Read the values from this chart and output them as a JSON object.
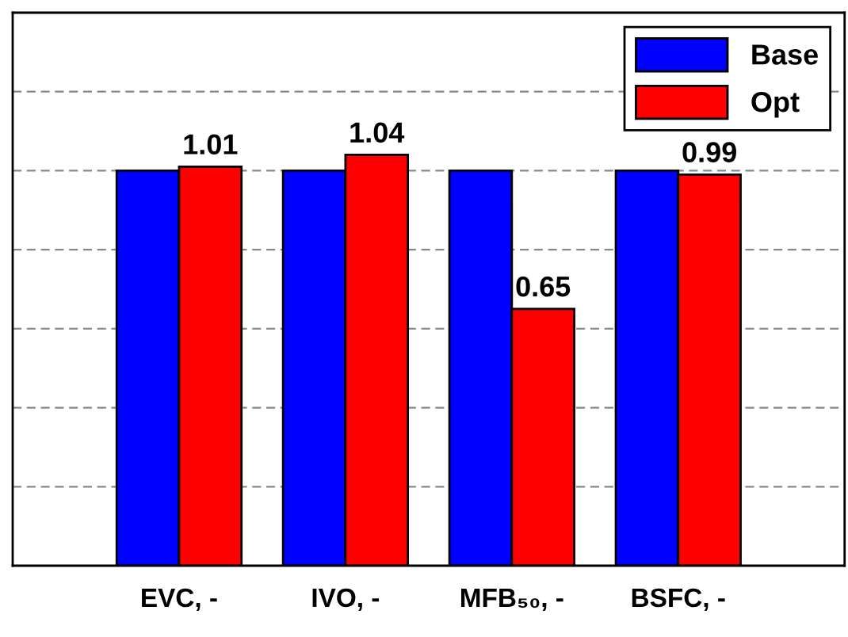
{
  "chart_data": {
    "type": "bar",
    "categories": [
      "EVC, -",
      "IVO, -",
      "MFB₅₀, -",
      "BSFC, -"
    ],
    "series": [
      {
        "name": "Base",
        "color": "#0000ff",
        "values": [
          1.0,
          1.0,
          1.0,
          1.0
        ]
      },
      {
        "name": "Opt",
        "color": "#ff0000",
        "values": [
          1.01,
          1.04,
          0.65,
          0.99
        ],
        "value_labels": [
          "1.01",
          "1.04",
          "0.65",
          "0.99"
        ]
      }
    ],
    "ylim": [
      0,
      1.4
    ],
    "yticks": [
      {
        "value": 0,
        "label": null
      },
      {
        "value": 0.2,
        "label": null
      },
      {
        "value": 0.4,
        "label": null
      },
      {
        "value": 0.6,
        "label": null
      },
      {
        "value": 0.8,
        "label": null
      },
      {
        "value": 1.0,
        "label": null
      },
      {
        "value": 1.2,
        "label": null
      },
      {
        "value": 1.4,
        "label": null
      }
    ],
    "grid": "y",
    "legend": "top right",
    "tick_labels": "x"
  }
}
